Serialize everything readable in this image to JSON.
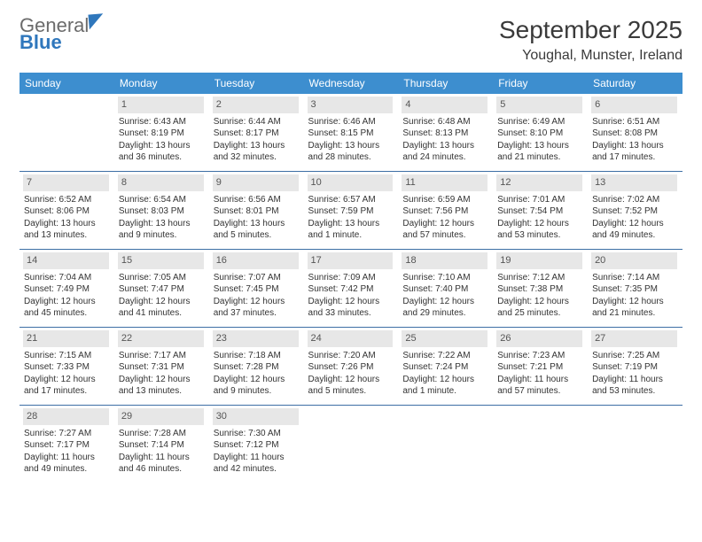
{
  "logo": {
    "line1": "General",
    "line2": "Blue"
  },
  "title": "September 2025",
  "location": "Youghal, Munster, Ireland",
  "days_of_week": [
    "Sunday",
    "Monday",
    "Tuesday",
    "Wednesday",
    "Thursday",
    "Friday",
    "Saturday"
  ],
  "colors": {
    "header_bg": "#3d8ecf",
    "header_fg": "#ffffff",
    "row_divider": "#3d6fa5",
    "daynum_bg": "#e7e7e7"
  },
  "weeks": [
    [
      null,
      {
        "n": "1",
        "sr": "Sunrise: 6:43 AM",
        "ss": "Sunset: 8:19 PM",
        "d1": "Daylight: 13 hours",
        "d2": "and 36 minutes."
      },
      {
        "n": "2",
        "sr": "Sunrise: 6:44 AM",
        "ss": "Sunset: 8:17 PM",
        "d1": "Daylight: 13 hours",
        "d2": "and 32 minutes."
      },
      {
        "n": "3",
        "sr": "Sunrise: 6:46 AM",
        "ss": "Sunset: 8:15 PM",
        "d1": "Daylight: 13 hours",
        "d2": "and 28 minutes."
      },
      {
        "n": "4",
        "sr": "Sunrise: 6:48 AM",
        "ss": "Sunset: 8:13 PM",
        "d1": "Daylight: 13 hours",
        "d2": "and 24 minutes."
      },
      {
        "n": "5",
        "sr": "Sunrise: 6:49 AM",
        "ss": "Sunset: 8:10 PM",
        "d1": "Daylight: 13 hours",
        "d2": "and 21 minutes."
      },
      {
        "n": "6",
        "sr": "Sunrise: 6:51 AM",
        "ss": "Sunset: 8:08 PM",
        "d1": "Daylight: 13 hours",
        "d2": "and 17 minutes."
      }
    ],
    [
      {
        "n": "7",
        "sr": "Sunrise: 6:52 AM",
        "ss": "Sunset: 8:06 PM",
        "d1": "Daylight: 13 hours",
        "d2": "and 13 minutes."
      },
      {
        "n": "8",
        "sr": "Sunrise: 6:54 AM",
        "ss": "Sunset: 8:03 PM",
        "d1": "Daylight: 13 hours",
        "d2": "and 9 minutes."
      },
      {
        "n": "9",
        "sr": "Sunrise: 6:56 AM",
        "ss": "Sunset: 8:01 PM",
        "d1": "Daylight: 13 hours",
        "d2": "and 5 minutes."
      },
      {
        "n": "10",
        "sr": "Sunrise: 6:57 AM",
        "ss": "Sunset: 7:59 PM",
        "d1": "Daylight: 13 hours",
        "d2": "and 1 minute."
      },
      {
        "n": "11",
        "sr": "Sunrise: 6:59 AM",
        "ss": "Sunset: 7:56 PM",
        "d1": "Daylight: 12 hours",
        "d2": "and 57 minutes."
      },
      {
        "n": "12",
        "sr": "Sunrise: 7:01 AM",
        "ss": "Sunset: 7:54 PM",
        "d1": "Daylight: 12 hours",
        "d2": "and 53 minutes."
      },
      {
        "n": "13",
        "sr": "Sunrise: 7:02 AM",
        "ss": "Sunset: 7:52 PM",
        "d1": "Daylight: 12 hours",
        "d2": "and 49 minutes."
      }
    ],
    [
      {
        "n": "14",
        "sr": "Sunrise: 7:04 AM",
        "ss": "Sunset: 7:49 PM",
        "d1": "Daylight: 12 hours",
        "d2": "and 45 minutes."
      },
      {
        "n": "15",
        "sr": "Sunrise: 7:05 AM",
        "ss": "Sunset: 7:47 PM",
        "d1": "Daylight: 12 hours",
        "d2": "and 41 minutes."
      },
      {
        "n": "16",
        "sr": "Sunrise: 7:07 AM",
        "ss": "Sunset: 7:45 PM",
        "d1": "Daylight: 12 hours",
        "d2": "and 37 minutes."
      },
      {
        "n": "17",
        "sr": "Sunrise: 7:09 AM",
        "ss": "Sunset: 7:42 PM",
        "d1": "Daylight: 12 hours",
        "d2": "and 33 minutes."
      },
      {
        "n": "18",
        "sr": "Sunrise: 7:10 AM",
        "ss": "Sunset: 7:40 PM",
        "d1": "Daylight: 12 hours",
        "d2": "and 29 minutes."
      },
      {
        "n": "19",
        "sr": "Sunrise: 7:12 AM",
        "ss": "Sunset: 7:38 PM",
        "d1": "Daylight: 12 hours",
        "d2": "and 25 minutes."
      },
      {
        "n": "20",
        "sr": "Sunrise: 7:14 AM",
        "ss": "Sunset: 7:35 PM",
        "d1": "Daylight: 12 hours",
        "d2": "and 21 minutes."
      }
    ],
    [
      {
        "n": "21",
        "sr": "Sunrise: 7:15 AM",
        "ss": "Sunset: 7:33 PM",
        "d1": "Daylight: 12 hours",
        "d2": "and 17 minutes."
      },
      {
        "n": "22",
        "sr": "Sunrise: 7:17 AM",
        "ss": "Sunset: 7:31 PM",
        "d1": "Daylight: 12 hours",
        "d2": "and 13 minutes."
      },
      {
        "n": "23",
        "sr": "Sunrise: 7:18 AM",
        "ss": "Sunset: 7:28 PM",
        "d1": "Daylight: 12 hours",
        "d2": "and 9 minutes."
      },
      {
        "n": "24",
        "sr": "Sunrise: 7:20 AM",
        "ss": "Sunset: 7:26 PM",
        "d1": "Daylight: 12 hours",
        "d2": "and 5 minutes."
      },
      {
        "n": "25",
        "sr": "Sunrise: 7:22 AM",
        "ss": "Sunset: 7:24 PM",
        "d1": "Daylight: 12 hours",
        "d2": "and 1 minute."
      },
      {
        "n": "26",
        "sr": "Sunrise: 7:23 AM",
        "ss": "Sunset: 7:21 PM",
        "d1": "Daylight: 11 hours",
        "d2": "and 57 minutes."
      },
      {
        "n": "27",
        "sr": "Sunrise: 7:25 AM",
        "ss": "Sunset: 7:19 PM",
        "d1": "Daylight: 11 hours",
        "d2": "and 53 minutes."
      }
    ],
    [
      {
        "n": "28",
        "sr": "Sunrise: 7:27 AM",
        "ss": "Sunset: 7:17 PM",
        "d1": "Daylight: 11 hours",
        "d2": "and 49 minutes."
      },
      {
        "n": "29",
        "sr": "Sunrise: 7:28 AM",
        "ss": "Sunset: 7:14 PM",
        "d1": "Daylight: 11 hours",
        "d2": "and 46 minutes."
      },
      {
        "n": "30",
        "sr": "Sunrise: 7:30 AM",
        "ss": "Sunset: 7:12 PM",
        "d1": "Daylight: 11 hours",
        "d2": "and 42 minutes."
      },
      null,
      null,
      null,
      null
    ]
  ]
}
